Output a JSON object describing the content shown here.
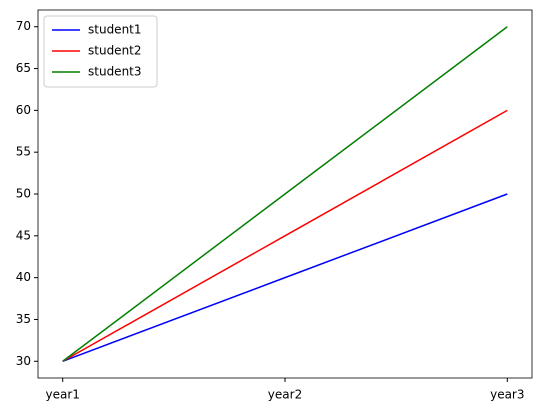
{
  "chart_data": {
    "type": "line",
    "categories": [
      "year1",
      "year2",
      "year3"
    ],
    "series": [
      {
        "name": "student1",
        "color": "#0000ff",
        "values": [
          30,
          40,
          50
        ]
      },
      {
        "name": "student2",
        "color": "#ff0000",
        "values": [
          30,
          45,
          60
        ]
      },
      {
        "name": "student3",
        "color": "#008000",
        "values": [
          30,
          50,
          70
        ]
      }
    ],
    "ylim": [
      28,
      72
    ],
    "yticks": [
      30,
      35,
      40,
      45,
      50,
      55,
      60,
      65,
      70
    ],
    "legend": "upper left"
  }
}
